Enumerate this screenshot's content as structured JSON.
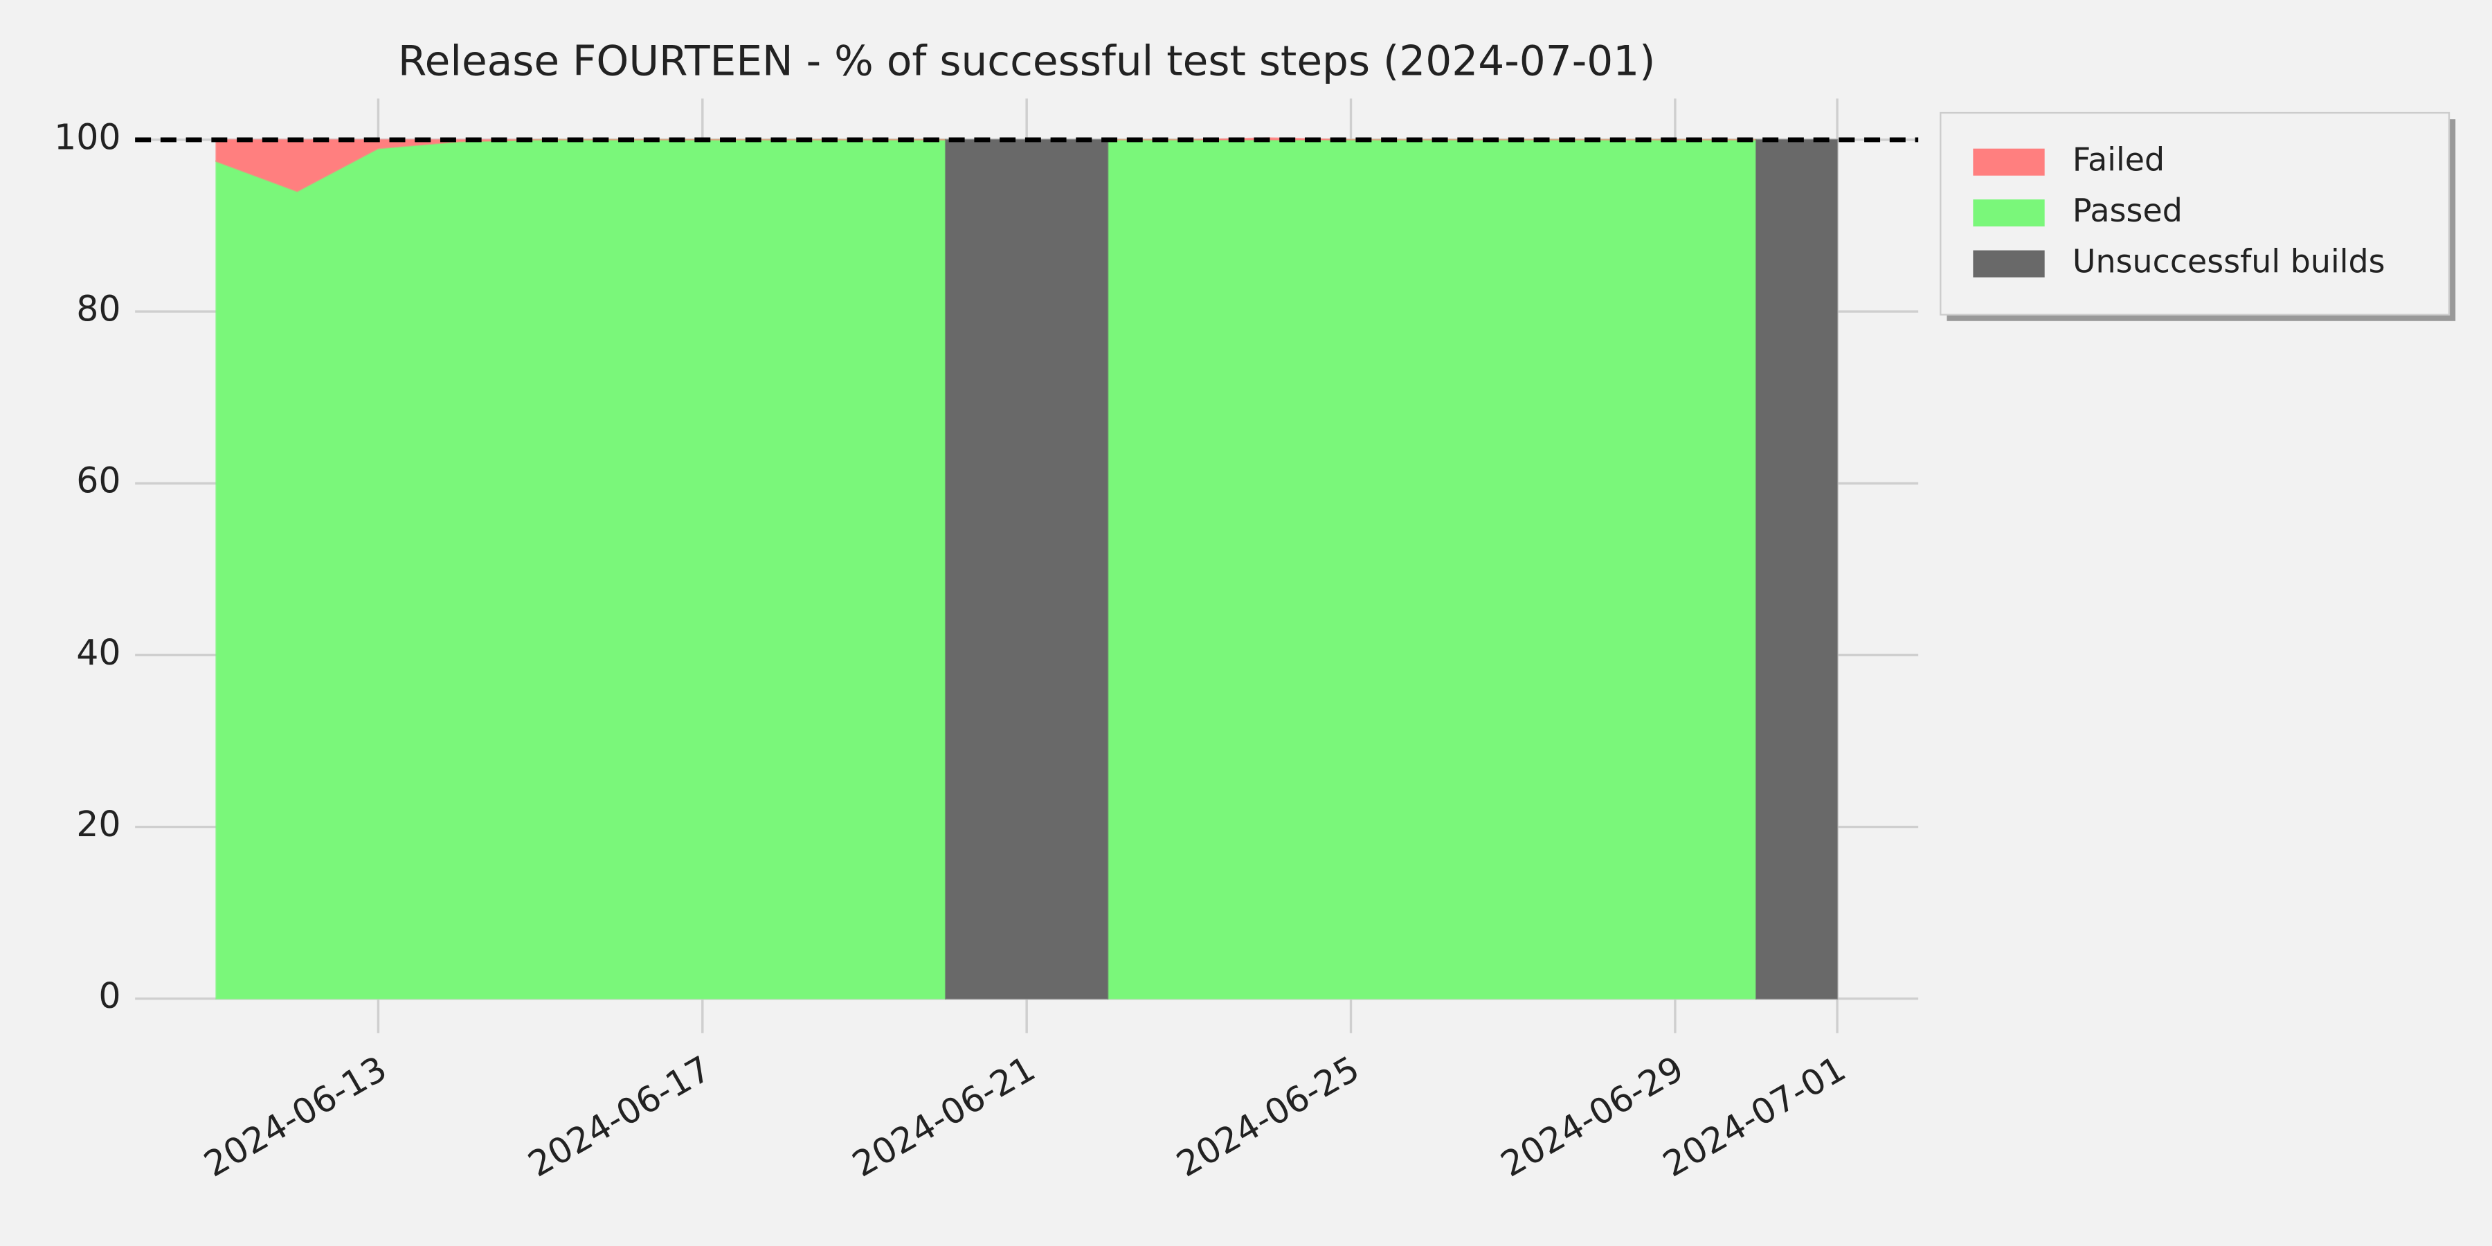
{
  "chart_data": {
    "type": "area",
    "title": "Release FOURTEEN - % of successful test steps (2024-07-01)",
    "x": [
      "2024-06-11",
      "2024-06-12",
      "2024-06-13",
      "2024-06-14",
      "2024-06-15",
      "2024-06-16",
      "2024-06-17",
      "2024-06-18",
      "2024-06-19",
      "2024-06-20",
      "2024-06-21",
      "2024-06-22",
      "2024-06-23",
      "2024-06-24",
      "2024-06-25",
      "2024-06-26",
      "2024-06-27",
      "2024-06-28",
      "2024-06-29",
      "2024-06-30",
      "2024-07-01"
    ],
    "series": [
      {
        "name": "Failed",
        "color": "#ff7f7f",
        "stacked": true,
        "values": [
          2.5,
          6,
          1,
          0.2,
          0,
          0,
          0,
          0,
          0,
          0,
          null,
          0,
          0,
          0.2,
          0,
          0,
          0,
          0,
          0,
          0,
          null
        ]
      },
      {
        "name": "Passed",
        "color": "#7af77a",
        "stacked": true,
        "values": [
          97.5,
          94,
          99,
          99.8,
          100,
          100,
          100,
          100,
          100,
          100,
          null,
          100,
          100,
          100,
          100,
          100,
          100,
          100,
          100,
          100,
          null
        ]
      },
      {
        "name": "Unsuccessful builds",
        "color": "#696969",
        "stacked": false,
        "values": [
          null,
          null,
          null,
          null,
          null,
          null,
          null,
          null,
          null,
          100,
          100,
          100,
          null,
          null,
          null,
          null,
          null,
          null,
          null,
          100,
          100
        ]
      }
    ],
    "hline": 100,
    "xlim": [
      "2024-06-10",
      "2024-07-02"
    ],
    "xticks": [
      "2024-06-13",
      "2024-06-17",
      "2024-06-21",
      "2024-06-25",
      "2024-06-29",
      "2024-07-01"
    ],
    "ylim": [
      -4,
      104.8
    ],
    "yticks": [
      0,
      20,
      40,
      60,
      80,
      100
    ],
    "grid": true,
    "legend": "outside upper right"
  }
}
